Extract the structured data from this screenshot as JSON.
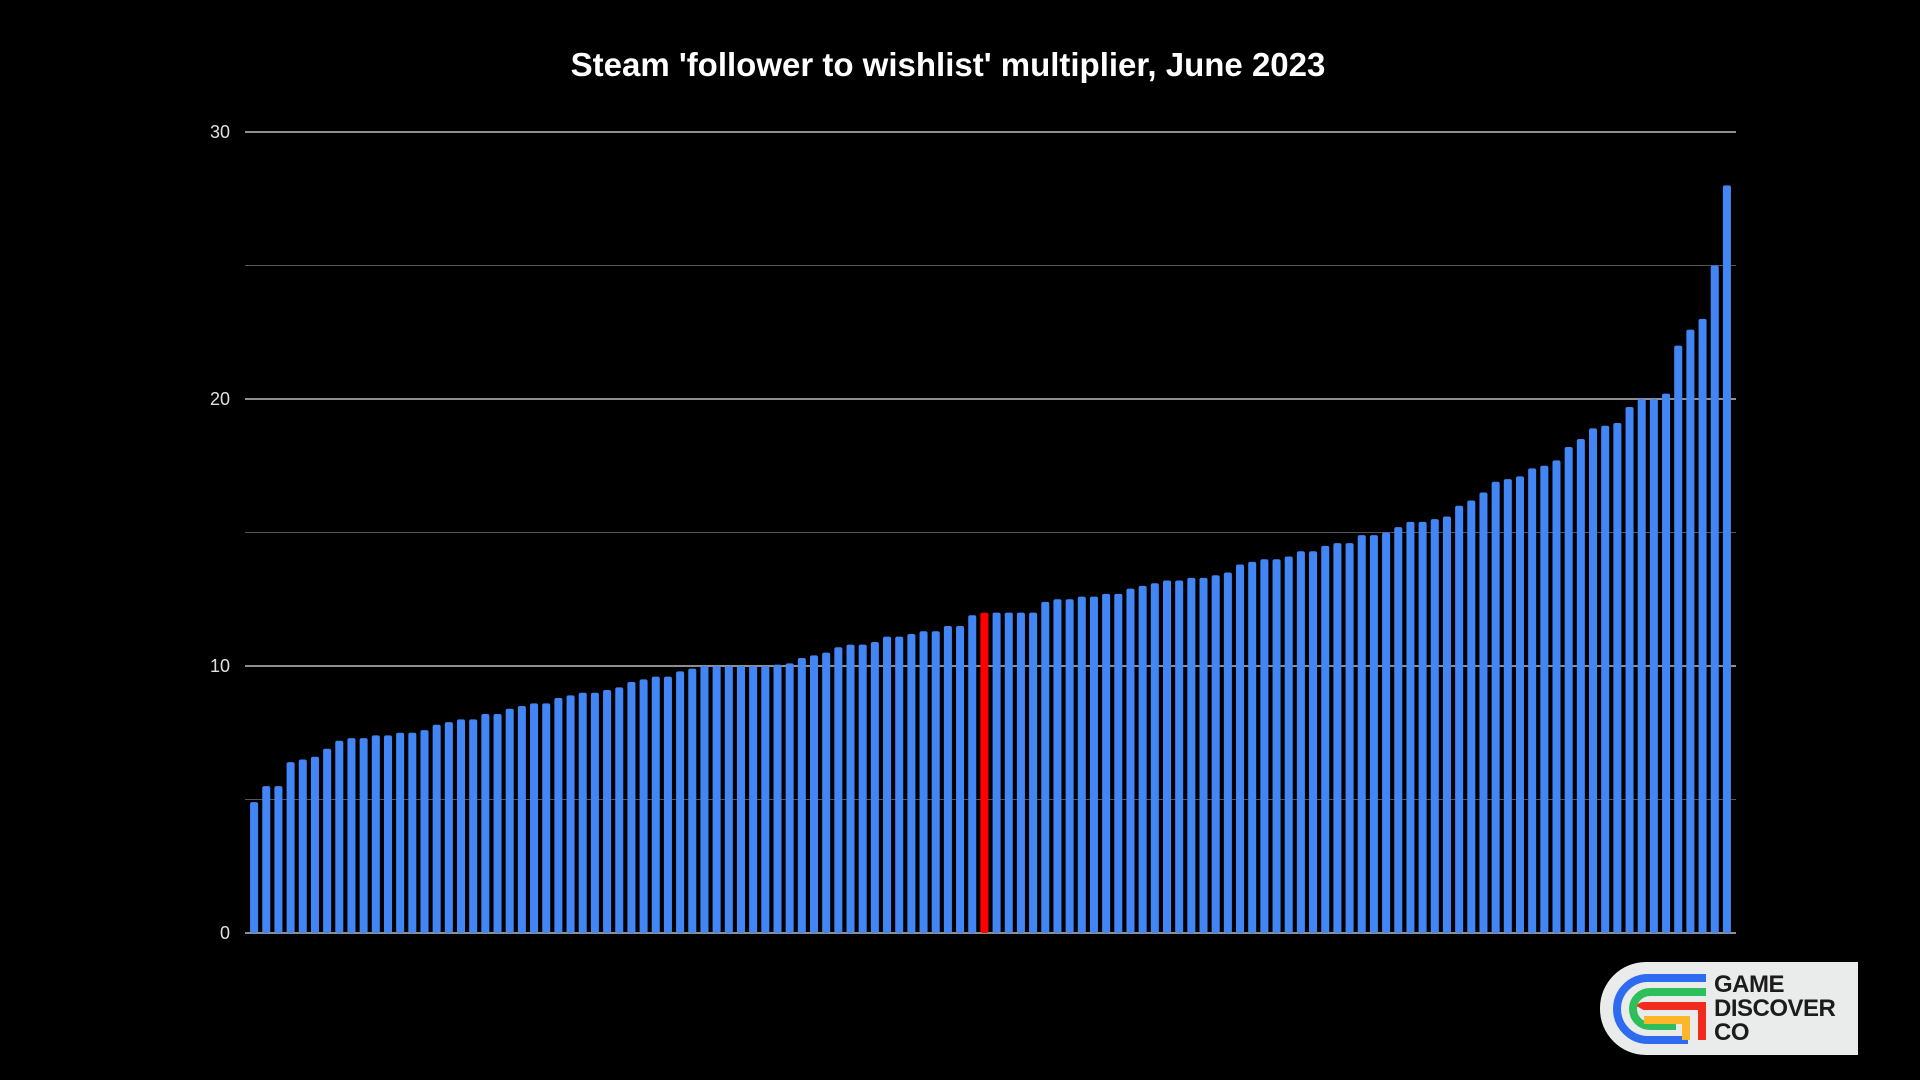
{
  "chart_data": {
    "type": "bar",
    "title": "Steam 'follower to wishlist' multiplier, June 2023",
    "xlabel": "",
    "ylabel": "",
    "ylim": [
      0,
      30
    ],
    "yticks": [
      0,
      10,
      20,
      30
    ],
    "grid": true,
    "bar_color": "#4285f4",
    "highlight_color": "#ff0000",
    "highlight_index": 60,
    "values": [
      4.9,
      5.5,
      5.5,
      6.4,
      6.5,
      6.6,
      6.9,
      7.2,
      7.3,
      7.3,
      7.4,
      7.4,
      7.5,
      7.5,
      7.6,
      7.8,
      7.9,
      8.0,
      8.0,
      8.2,
      8.2,
      8.4,
      8.5,
      8.6,
      8.6,
      8.8,
      8.9,
      9.0,
      9.0,
      9.1,
      9.2,
      9.4,
      9.5,
      9.6,
      9.6,
      9.8,
      9.9,
      10.0,
      10.0,
      10.0,
      10.0,
      10.0,
      10.0,
      10.05,
      10.1,
      10.3,
      10.4,
      10.5,
      10.7,
      10.8,
      10.8,
      10.9,
      11.1,
      11.1,
      11.2,
      11.3,
      11.3,
      11.5,
      11.5,
      11.9,
      12.0,
      12.0,
      12.0,
      12.0,
      12.0,
      12.4,
      12.5,
      12.5,
      12.6,
      12.6,
      12.7,
      12.7,
      12.9,
      13.0,
      13.1,
      13.2,
      13.2,
      13.3,
      13.3,
      13.4,
      13.5,
      13.8,
      13.9,
      14.0,
      14.0,
      14.1,
      14.3,
      14.3,
      14.5,
      14.6,
      14.6,
      14.9,
      14.9,
      15.0,
      15.2,
      15.4,
      15.4,
      15.5,
      15.6,
      16.0,
      16.2,
      16.5,
      16.9,
      17.0,
      17.1,
      17.4,
      17.5,
      17.7,
      18.2,
      18.5,
      18.9,
      19.0,
      19.1,
      19.7,
      20.0,
      20.0,
      20.2,
      22.0,
      22.6,
      23.0,
      25.0,
      28.0
    ]
  },
  "logo": {
    "lines": [
      "GAME",
      "DISCOVER",
      "CO"
    ],
    "colors": [
      "#2f6bf0",
      "#2fbf5a",
      "#f22b1f",
      "#fbb62a"
    ]
  }
}
